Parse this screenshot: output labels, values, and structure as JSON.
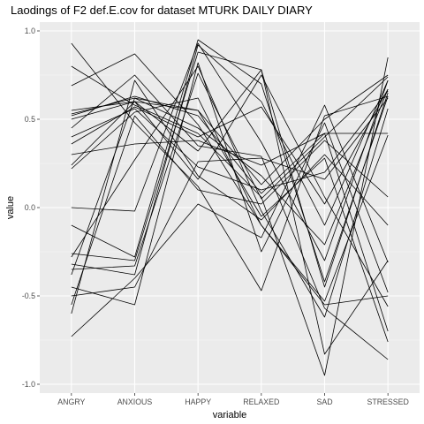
{
  "chart_data": {
    "type": "line",
    "title": "Laodings of F2 def.E.cov for dataset MTURK DAILY DIARY",
    "xlabel": "variable",
    "ylabel": "value",
    "categories": [
      "ANGRY",
      "ANXIOUS",
      "HAPPY",
      "RELAXED",
      "SAD",
      "STRESSED"
    ],
    "ylim": [
      -1.05,
      1.05
    ],
    "yticks": [
      1.0,
      0.5,
      0.0,
      -0.5,
      -1.0
    ],
    "ytick_labels": [
      "1.0",
      "0.5",
      "0.0",
      "-0.5",
      "-1.0"
    ],
    "grid": true,
    "legend": "none",
    "colors": {
      "panel": "#ebebeb",
      "grid_major": "#ffffff",
      "grid_minor": "#f5f5f5",
      "line": "#000000",
      "tick_label": "#4d4d4d",
      "tick_mark": "#333333"
    },
    "series": [
      {
        "values": [
          0.93,
          0.48,
          0.12,
          -0.47,
          0.52,
          0.63
        ]
      },
      {
        "values": [
          0.8,
          0.58,
          0.42,
          0.06,
          -0.95,
          0.85
        ]
      },
      {
        "values": [
          0.69,
          0.87,
          0.47,
          -0.1,
          -0.53,
          0.41
        ]
      },
      {
        "values": [
          0.55,
          0.6,
          0.55,
          0.13,
          0.5,
          0.75
        ]
      },
      {
        "values": [
          0.53,
          0.62,
          0.45,
          0.18,
          -0.21,
          0.67
        ]
      },
      {
        "values": [
          0.52,
          0.63,
          0.52,
          0.08,
          0.42,
          -0.7
        ]
      },
      {
        "values": [
          0.5,
          0.6,
          0.32,
          0.78,
          -0.83,
          -0.3
        ]
      },
      {
        "values": [
          0.45,
          0.75,
          0.35,
          0.29,
          -0.57,
          -0.86
        ]
      },
      {
        "values": [
          0.4,
          0.56,
          0.23,
          0.1,
          0.2,
          0.66
        ]
      },
      {
        "values": [
          0.36,
          0.57,
          0.4,
          0.57,
          0.02,
          0.67
        ]
      },
      {
        "values": [
          0.3,
          0.36,
          0.38,
          0.24,
          0.42,
          0.42
        ]
      },
      {
        "values": [
          0.24,
          0.6,
          0.16,
          0.75,
          0.06,
          -0.56
        ]
      },
      {
        "values": [
          0.22,
          0.54,
          0.62,
          -0.1,
          -0.55,
          -0.5
        ]
      },
      {
        "values": [
          0.0,
          -0.02,
          0.93,
          0.37,
          -0.3,
          0.72
        ]
      },
      {
        "values": [
          -0.1,
          -0.28,
          0.95,
          0.7,
          -0.42,
          0.63
        ]
      },
      {
        "values": [
          -0.26,
          -0.3,
          0.88,
          0.78,
          -0.45,
          0.65
        ]
      },
      {
        "values": [
          -0.28,
          0.27,
          0.8,
          -0.02,
          -0.62,
          0.56
        ]
      },
      {
        "values": [
          -0.32,
          -0.38,
          0.92,
          0.6,
          -0.1,
          0.72
        ]
      },
      {
        "values": [
          -0.35,
          -0.33,
          0.76,
          0.05,
          0.4,
          0.74
        ]
      },
      {
        "values": [
          -0.45,
          -0.55,
          0.82,
          -0.25,
          0.48,
          -0.48
        ]
      },
      {
        "values": [
          -0.55,
          0.52,
          0.1,
          0.02,
          0.38,
          0.06
        ]
      },
      {
        "values": [
          -0.6,
          0.72,
          0.18,
          -0.07,
          0.3,
          -0.1
        ]
      },
      {
        "values": [
          -0.73,
          -0.4,
          0.02,
          -0.17,
          0.58,
          -0.31
        ]
      },
      {
        "values": [
          -0.5,
          -0.45,
          0.26,
          0.28,
          0.16,
          0.62
        ]
      },
      {
        "values": [
          -0.38,
          0.62,
          0.55,
          -0.05,
          0.28,
          -0.76
        ]
      }
    ]
  }
}
